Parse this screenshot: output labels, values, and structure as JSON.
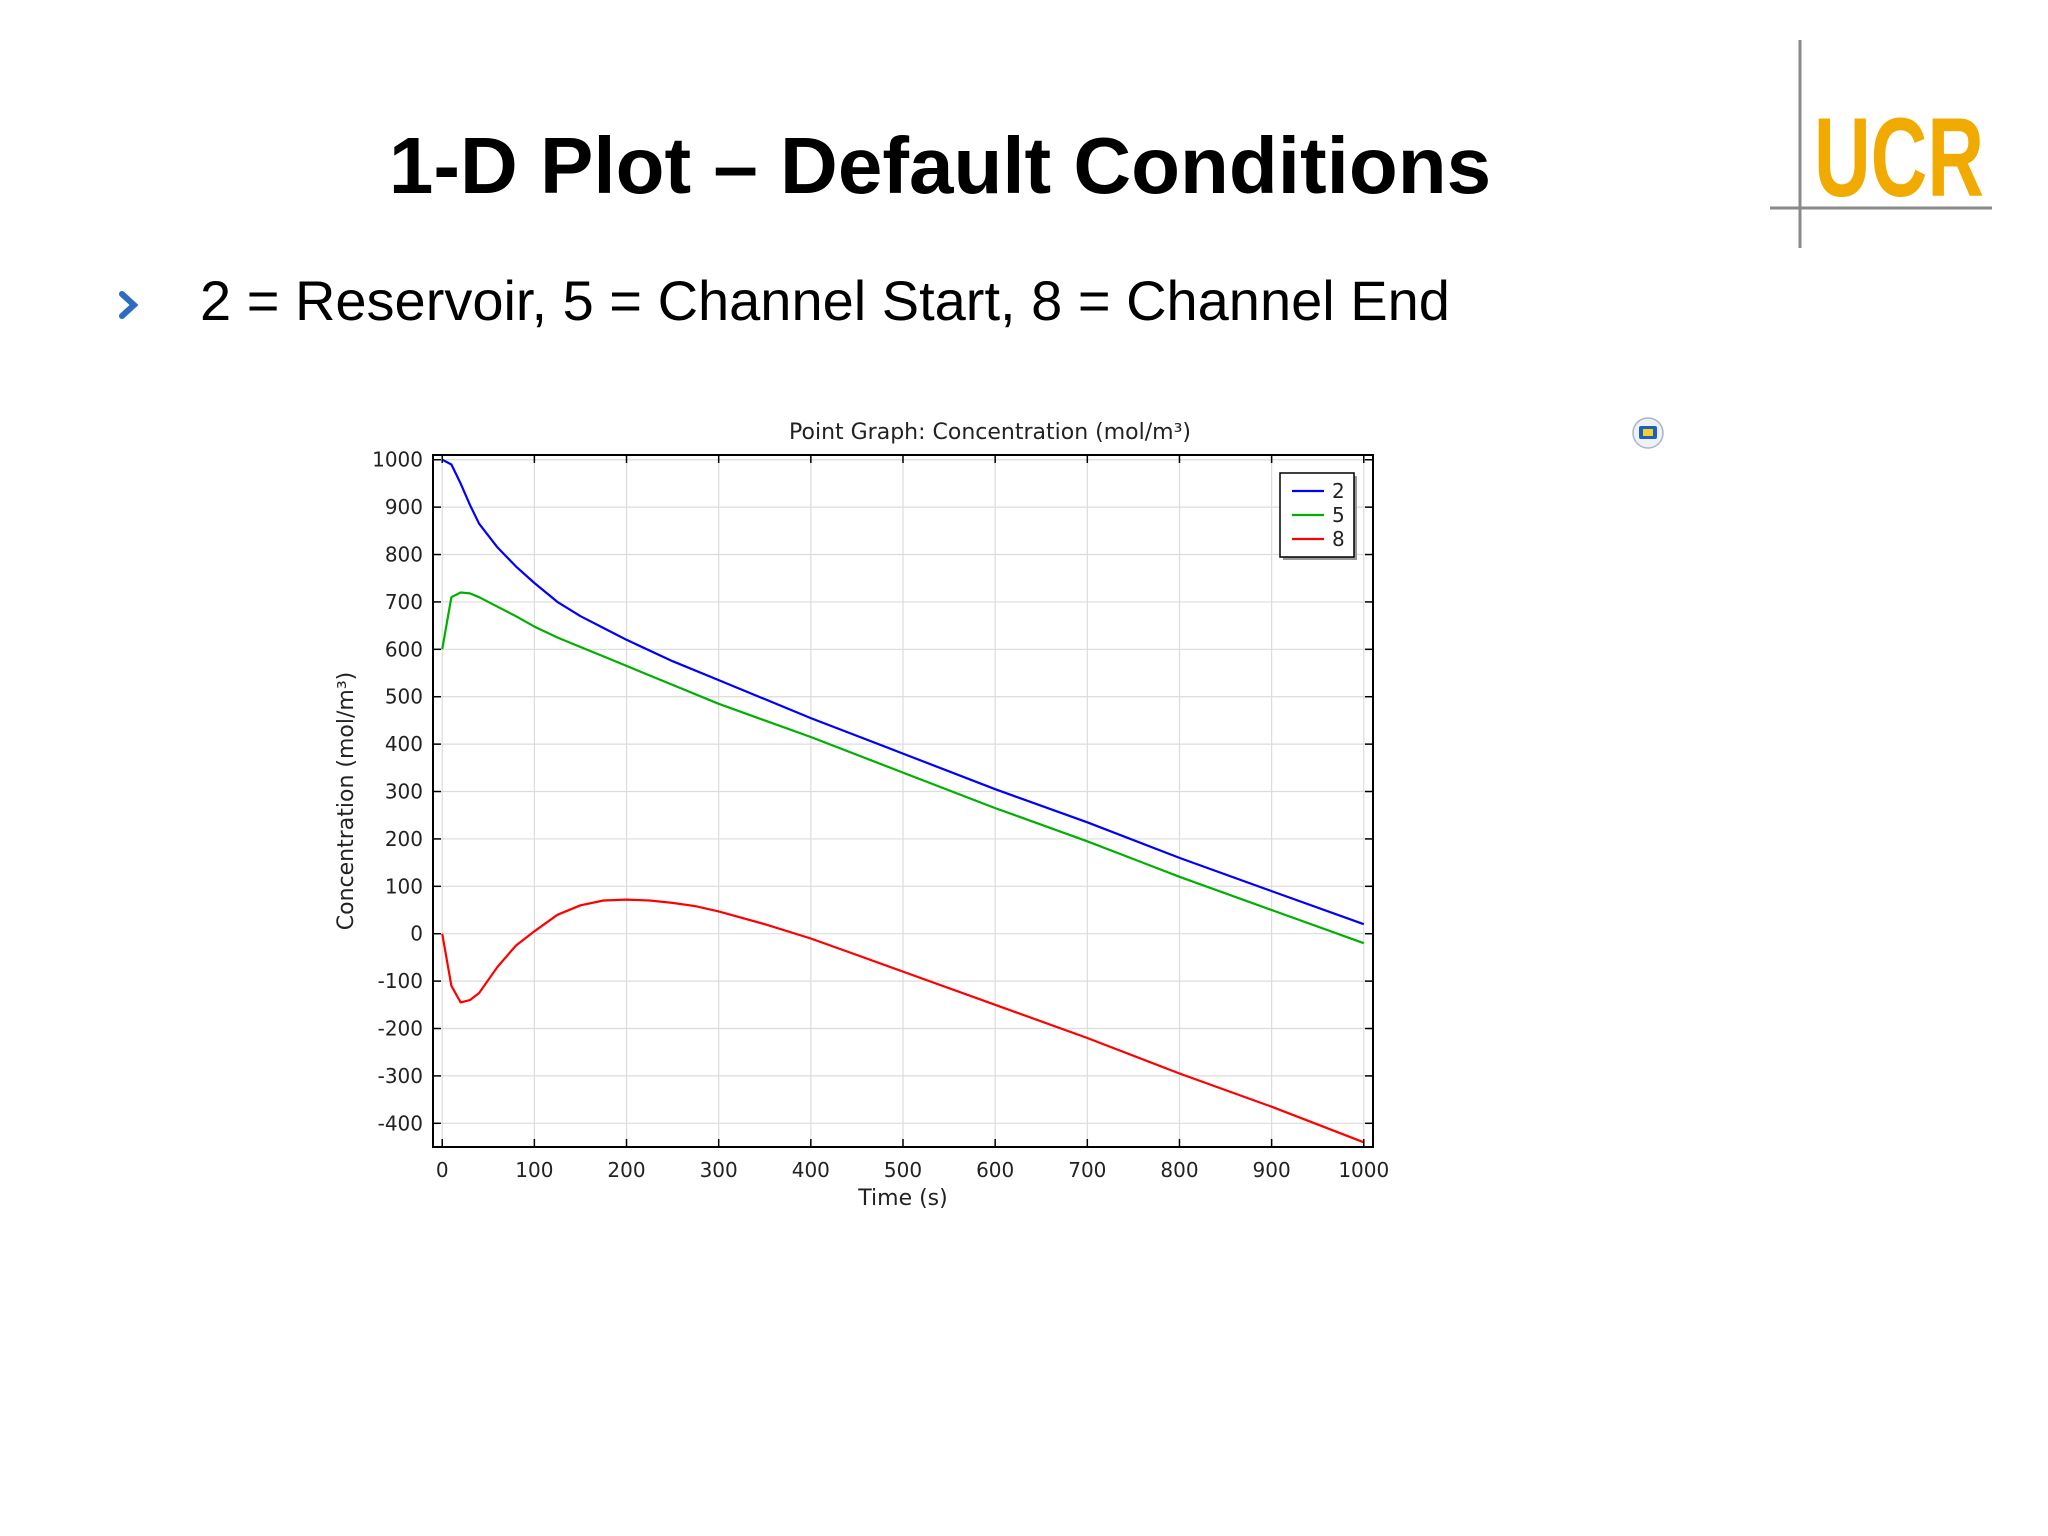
{
  "slide": {
    "title": "1-D Plot – Default Conditions",
    "bullet": "2 = Reservoir, 5 = Channel Start, 8 = Channel End"
  },
  "logo": {
    "text": "UCR",
    "color_uc": "#F1AB00",
    "color_r": "#2D6CC0"
  },
  "colors": {
    "bullet": "#2D6CC0"
  },
  "chart_data": {
    "type": "line",
    "title": "Point Graph: Concentration (mol/m³)",
    "xlabel": "Time (s)",
    "ylabel": "Concentration (mol/m³)",
    "xlim": [
      -10,
      1010
    ],
    "ylim": [
      -450,
      1010
    ],
    "xticks": [
      0,
      100,
      200,
      300,
      400,
      500,
      600,
      700,
      800,
      900,
      1000
    ],
    "xtick_labels": [
      "0",
      "100",
      "200",
      "300",
      "400",
      "500",
      "600",
      "700",
      "800",
      "900",
      "1000"
    ],
    "yticks": [
      -400,
      -300,
      -200,
      -100,
      0,
      100,
      200,
      300,
      400,
      500,
      600,
      700,
      800,
      900,
      1000
    ],
    "ytick_labels": [
      "-400",
      "-300",
      "-200",
      "-100",
      "0",
      "100",
      "200",
      "300",
      "400",
      "500",
      "600",
      "700",
      "800",
      "900",
      "1000"
    ],
    "grid": true,
    "legend_position": "top-right",
    "series": [
      {
        "name": "2",
        "color": "#0000ff",
        "x": [
          0,
          10,
          20,
          30,
          40,
          60,
          80,
          100,
          125,
          150,
          175,
          200,
          250,
          300,
          400,
          500,
          600,
          700,
          800,
          900,
          1000
        ],
        "y": [
          1000,
          990,
          950,
          905,
          865,
          815,
          775,
          740,
          700,
          670,
          645,
          620,
          575,
          535,
          455,
          380,
          305,
          235,
          160,
          90,
          20
        ]
      },
      {
        "name": "5",
        "color": "#00b000",
        "x": [
          0,
          10,
          20,
          30,
          40,
          60,
          80,
          100,
          125,
          150,
          175,
          200,
          250,
          300,
          400,
          500,
          600,
          700,
          800,
          900,
          1000
        ],
        "y": [
          600,
          710,
          720,
          718,
          710,
          690,
          670,
          648,
          625,
          605,
          585,
          565,
          525,
          485,
          415,
          340,
          265,
          195,
          120,
          50,
          -20
        ]
      },
      {
        "name": "8",
        "color": "#ff0000",
        "x": [
          0,
          10,
          20,
          30,
          40,
          60,
          80,
          100,
          125,
          150,
          175,
          200,
          225,
          250,
          275,
          300,
          350,
          400,
          450,
          500,
          600,
          700,
          800,
          900,
          1000
        ],
        "y": [
          0,
          -110,
          -145,
          -140,
          -125,
          -70,
          -25,
          5,
          40,
          60,
          70,
          72,
          70,
          65,
          58,
          47,
          20,
          -10,
          -45,
          -80,
          -150,
          -220,
          -295,
          -365,
          -440
        ]
      }
    ]
  }
}
